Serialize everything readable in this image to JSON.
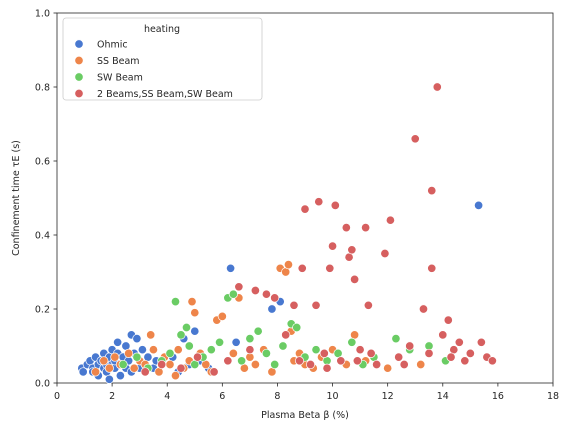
{
  "chart_data": {
    "type": "scatter",
    "title": "",
    "xlabel": "Plasma Beta β (%)",
    "ylabel": "Confinement time τE (s)",
    "xlim": [
      0,
      18
    ],
    "ylim": [
      0,
      1.0
    ],
    "xticks": [
      "0",
      "2",
      "4",
      "6",
      "8",
      "10",
      "12",
      "14",
      "16",
      "18"
    ],
    "yticks": [
      "0.0",
      "0.2",
      "0.4",
      "0.6",
      "0.8",
      "1.0"
    ],
    "grid": false,
    "legend": {
      "title": "heating",
      "placement": "top-left"
    },
    "series": [
      {
        "name": "Ohmic",
        "color": "#4878d0",
        "points": [
          [
            0.9,
            0.04
          ],
          [
            0.95,
            0.03
          ],
          [
            1.1,
            0.05
          ],
          [
            1.2,
            0.06
          ],
          [
            1.3,
            0.04
          ],
          [
            1.3,
            0.03
          ],
          [
            1.4,
            0.07
          ],
          [
            1.5,
            0.05
          ],
          [
            1.5,
            0.02
          ],
          [
            1.6,
            0.06
          ],
          [
            1.7,
            0.08
          ],
          [
            1.7,
            0.04
          ],
          [
            1.8,
            0.05
          ],
          [
            1.8,
            0.03
          ],
          [
            1.9,
            0.07
          ],
          [
            1.9,
            0.01
          ],
          [
            2.0,
            0.09
          ],
          [
            2.0,
            0.05
          ],
          [
            2.1,
            0.04
          ],
          [
            2.1,
            0.06
          ],
          [
            2.2,
            0.08
          ],
          [
            2.2,
            0.11
          ],
          [
            2.3,
            0.05
          ],
          [
            2.3,
            0.02
          ],
          [
            2.4,
            0.07
          ],
          [
            2.5,
            0.1
          ],
          [
            2.5,
            0.04
          ],
          [
            2.6,
            0.06
          ],
          [
            2.7,
            0.13
          ],
          [
            2.7,
            0.03
          ],
          [
            2.8,
            0.08
          ],
          [
            2.9,
            0.12
          ],
          [
            3.0,
            0.06
          ],
          [
            3.0,
            0.04
          ],
          [
            3.1,
            0.09
          ],
          [
            3.2,
            0.05
          ],
          [
            3.3,
            0.07
          ],
          [
            3.5,
            0.04
          ],
          [
            3.6,
            0.06
          ],
          [
            3.8,
            0.05
          ],
          [
            4.2,
            0.07
          ],
          [
            4.4,
            0.03
          ],
          [
            4.6,
            0.12
          ],
          [
            4.8,
            0.05
          ],
          [
            5.0,
            0.14
          ],
          [
            5.2,
            0.06
          ],
          [
            5.5,
            0.04
          ],
          [
            6.3,
            0.31
          ],
          [
            6.5,
            0.11
          ],
          [
            7.8,
            0.2
          ],
          [
            8.1,
            0.22
          ],
          [
            15.3,
            0.48
          ]
        ]
      },
      {
        "name": "SS Beam",
        "color": "#ee854a",
        "points": [
          [
            1.4,
            0.03
          ],
          [
            1.7,
            0.06
          ],
          [
            1.9,
            0.04
          ],
          [
            2.1,
            0.07
          ],
          [
            2.3,
            0.05
          ],
          [
            2.6,
            0.08
          ],
          [
            2.8,
            0.04
          ],
          [
            3.0,
            0.06
          ],
          [
            3.2,
            0.05
          ],
          [
            3.4,
            0.13
          ],
          [
            3.5,
            0.09
          ],
          [
            3.7,
            0.03
          ],
          [
            3.9,
            0.07
          ],
          [
            4.1,
            0.05
          ],
          [
            4.3,
            0.02
          ],
          [
            4.4,
            0.09
          ],
          [
            4.6,
            0.04
          ],
          [
            4.8,
            0.06
          ],
          [
            4.9,
            0.22
          ],
          [
            5.0,
            0.19
          ],
          [
            5.2,
            0.08
          ],
          [
            5.4,
            0.05
          ],
          [
            5.6,
            0.03
          ],
          [
            5.8,
            0.17
          ],
          [
            6.0,
            0.18
          ],
          [
            6.2,
            0.06
          ],
          [
            6.4,
            0.08
          ],
          [
            6.6,
            0.23
          ],
          [
            6.8,
            0.04
          ],
          [
            7.0,
            0.07
          ],
          [
            7.2,
            0.05
          ],
          [
            7.5,
            0.09
          ],
          [
            7.8,
            0.03
          ],
          [
            8.1,
            0.31
          ],
          [
            8.3,
            0.3
          ],
          [
            8.4,
            0.32
          ],
          [
            8.5,
            0.14
          ],
          [
            8.6,
            0.06
          ],
          [
            8.8,
            0.08
          ],
          [
            9.0,
            0.05
          ],
          [
            9.3,
            0.04
          ],
          [
            9.6,
            0.07
          ],
          [
            10.0,
            0.09
          ],
          [
            10.5,
            0.05
          ],
          [
            10.8,
            0.13
          ],
          [
            11.2,
            0.06
          ],
          [
            12.0,
            0.04
          ],
          [
            13.2,
            0.05
          ]
        ]
      },
      {
        "name": "SW Beam",
        "color": "#6acc64",
        "points": [
          [
            2.4,
            0.05
          ],
          [
            2.9,
            0.07
          ],
          [
            3.3,
            0.04
          ],
          [
            3.8,
            0.06
          ],
          [
            4.1,
            0.08
          ],
          [
            4.3,
            0.22
          ],
          [
            4.5,
            0.13
          ],
          [
            4.7,
            0.15
          ],
          [
            4.8,
            0.1
          ],
          [
            5.0,
            0.05
          ],
          [
            5.3,
            0.07
          ],
          [
            5.6,
            0.09
          ],
          [
            5.9,
            0.11
          ],
          [
            6.2,
            0.23
          ],
          [
            6.4,
            0.24
          ],
          [
            6.7,
            0.06
          ],
          [
            7.0,
            0.12
          ],
          [
            7.3,
            0.14
          ],
          [
            7.6,
            0.08
          ],
          [
            7.9,
            0.05
          ],
          [
            8.2,
            0.1
          ],
          [
            8.5,
            0.16
          ],
          [
            8.7,
            0.15
          ],
          [
            9.0,
            0.07
          ],
          [
            9.4,
            0.09
          ],
          [
            9.8,
            0.06
          ],
          [
            10.2,
            0.08
          ],
          [
            10.7,
            0.11
          ],
          [
            11.1,
            0.05
          ],
          [
            11.5,
            0.07
          ],
          [
            12.3,
            0.12
          ],
          [
            12.8,
            0.09
          ],
          [
            13.5,
            0.1
          ],
          [
            14.1,
            0.06
          ]
        ]
      },
      {
        "name": "2 Beams,SS Beam,SW Beam",
        "color": "#d65f5f",
        "points": [
          [
            3.2,
            0.03
          ],
          [
            3.8,
            0.05
          ],
          [
            4.5,
            0.04
          ],
          [
            5.1,
            0.07
          ],
          [
            5.7,
            0.03
          ],
          [
            6.2,
            0.06
          ],
          [
            6.6,
            0.26
          ],
          [
            7.0,
            0.09
          ],
          [
            7.2,
            0.25
          ],
          [
            7.6,
            0.24
          ],
          [
            7.9,
            0.23
          ],
          [
            8.3,
            0.13
          ],
          [
            8.6,
            0.21
          ],
          [
            8.9,
            0.31
          ],
          [
            9.0,
            0.47
          ],
          [
            9.2,
            0.05
          ],
          [
            9.4,
            0.21
          ],
          [
            9.5,
            0.49
          ],
          [
            9.7,
            0.08
          ],
          [
            9.9,
            0.31
          ],
          [
            10.0,
            0.37
          ],
          [
            10.1,
            0.48
          ],
          [
            10.3,
            0.06
          ],
          [
            10.5,
            0.42
          ],
          [
            10.6,
            0.34
          ],
          [
            10.7,
            0.36
          ],
          [
            10.8,
            0.28
          ],
          [
            11.0,
            0.09
          ],
          [
            11.2,
            0.42
          ],
          [
            11.3,
            0.21
          ],
          [
            11.6,
            0.05
          ],
          [
            11.9,
            0.35
          ],
          [
            12.1,
            0.44
          ],
          [
            12.4,
            0.07
          ],
          [
            12.8,
            0.1
          ],
          [
            13.0,
            0.66
          ],
          [
            13.3,
            0.2
          ],
          [
            13.5,
            0.08
          ],
          [
            13.6,
            0.52
          ],
          [
            13.6,
            0.31
          ],
          [
            13.8,
            0.8
          ],
          [
            14.0,
            0.13
          ],
          [
            14.2,
            0.17
          ],
          [
            14.4,
            0.09
          ],
          [
            14.6,
            0.11
          ],
          [
            14.8,
            0.06
          ],
          [
            15.0,
            0.08
          ],
          [
            15.4,
            0.11
          ],
          [
            15.6,
            0.07
          ],
          [
            15.8,
            0.06
          ],
          [
            9.8,
            0.04
          ],
          [
            10.9,
            0.06
          ],
          [
            11.4,
            0.08
          ],
          [
            12.6,
            0.05
          ],
          [
            14.3,
            0.07
          ],
          [
            8.8,
            0.06
          ]
        ]
      }
    ]
  }
}
